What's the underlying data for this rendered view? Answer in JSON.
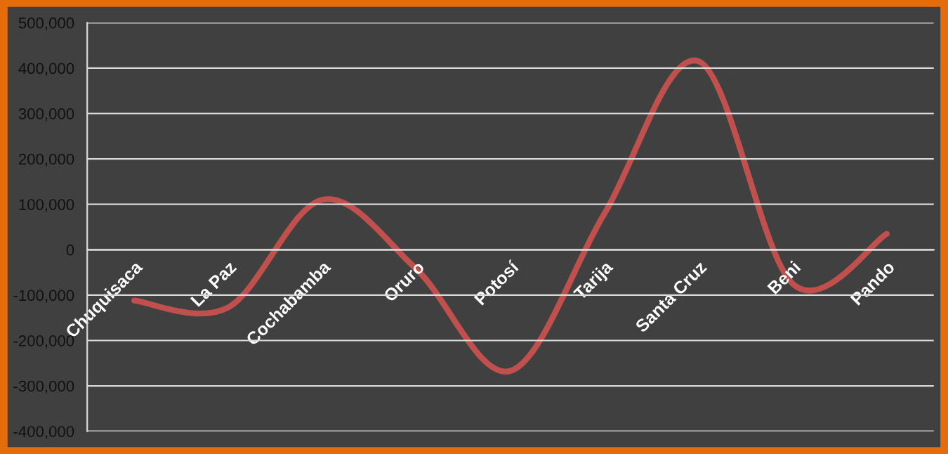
{
  "chart_data": {
    "type": "line",
    "categories": [
      "Chuquisaca",
      "La Paz",
      "Cochabamba",
      "Oruro",
      "Potosí",
      "Tarija",
      "Santa Cruz",
      "Beni",
      "Pando"
    ],
    "series": [
      {
        "color": "#c0504d",
        "values": [
          -112000,
          -127000,
          110000,
          -43000,
          -267000,
          80000,
          415000,
          -75000,
          35000
        ]
      }
    ],
    "ylim": [
      -400000,
      500000
    ],
    "yticks": [
      {
        "value": -400000,
        "label": "-400,000"
      },
      {
        "value": -300000,
        "label": "-300,000"
      },
      {
        "value": -200000,
        "label": "-200,000"
      },
      {
        "value": -100000,
        "label": "-100,000"
      },
      0,
      {
        "value": 100000,
        "label": "100,000"
      },
      {
        "value": 200000,
        "label": "200,000"
      },
      {
        "value": 300000,
        "label": "300,000"
      },
      {
        "value": 400000,
        "label": "400,000"
      },
      {
        "value": 500000,
        "label": "500,000"
      }
    ],
    "grid": "y",
    "marker": "none",
    "line_style": "solid",
    "legend": false
  }
}
